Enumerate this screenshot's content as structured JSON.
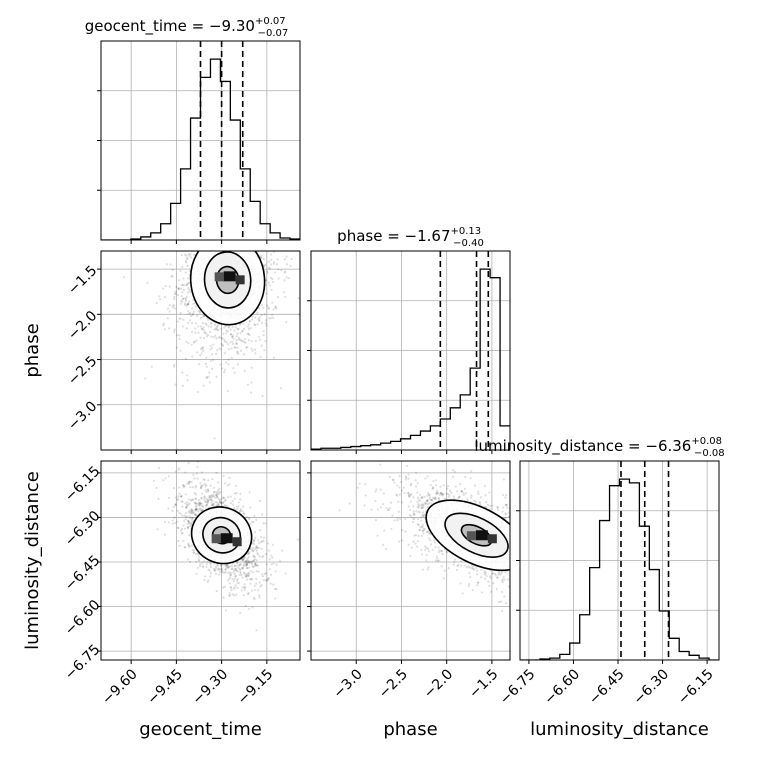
{
  "chart_data": {
    "type": "corner",
    "parameters": [
      "geocent_time",
      "phase",
      "luminosity_distance"
    ],
    "titles": [
      {
        "param": "geocent_time",
        "prefix": "geocent_time = ",
        "median": "−9.30",
        "plus": "+0.07",
        "minus": "−0.07"
      },
      {
        "param": "phase",
        "prefix": "phase = ",
        "median": "−1.67",
        "plus": "+0.13",
        "minus": "−0.40"
      },
      {
        "param": "luminosity_distance",
        "prefix": "luminosity_distance = ",
        "median": "−6.36",
        "plus": "+0.08",
        "minus": "−0.08"
      }
    ],
    "ranges": {
      "geocent_time": [
        -9.7,
        -9.04
      ],
      "phase": [
        -3.5,
        -1.3
      ],
      "luminosity_distance": [
        -6.78,
        -6.11
      ]
    },
    "ticks": {
      "geocent_time": [
        -9.6,
        -9.45,
        -9.3,
        -9.15
      ],
      "phase": [
        -3.0,
        -2.5,
        -2.0,
        -1.5
      ],
      "luminosity_distance": [
        -6.75,
        -6.6,
        -6.45,
        -6.3,
        -6.15
      ]
    },
    "tick_labels": {
      "geocent_time": [
        "−9.60",
        "−9.45",
        "−9.30",
        "−9.15"
      ],
      "phase": [
        "−3.0",
        "−2.5",
        "−2.0",
        "−1.5"
      ],
      "luminosity_distance": [
        "−6.75",
        "−6.60",
        "−6.45",
        "−6.30",
        "−6.15"
      ]
    },
    "quantiles": {
      "geocent_time": [
        -9.37,
        -9.3,
        -9.23
      ],
      "phase": [
        -2.07,
        -1.67,
        -1.54
      ],
      "luminosity_distance": [
        -6.44,
        -6.36,
        -6.28
      ]
    },
    "histograms": {
      "geocent_time": {
        "edges_start": -9.7,
        "bin_width": 0.033,
        "counts": [
          0,
          0,
          0,
          1,
          3,
          7,
          16,
          36,
          70,
          120,
          160,
          178,
          156,
          118,
          70,
          38,
          16,
          7,
          2,
          1
        ]
      },
      "phase": {
        "edges_start": -3.5,
        "bin_width": 0.11,
        "counts": [
          1,
          2,
          2,
          3,
          4,
          5,
          6,
          8,
          10,
          13,
          17,
          22,
          28,
          36,
          49,
          64,
          95,
          210,
          200,
          28
        ]
      },
      "luminosity_distance": {
        "edges_start": -6.78,
        "bin_width": 0.0335,
        "counts": [
          0,
          0,
          1,
          2,
          6,
          18,
          48,
          98,
          148,
          185,
          192,
          188,
          142,
          96,
          52,
          23,
          9,
          5,
          2,
          0
        ]
      }
    },
    "joint": [
      {
        "x": "geocent_time",
        "y": "phase",
        "x_center": -9.28,
        "y_center": -1.62,
        "x_sd": 0.085,
        "y_sd": 0.45,
        "corr": 0.1,
        "peak": [
          -9.27,
          -1.58
        ]
      },
      {
        "x": "geocent_time",
        "y": "luminosity_distance",
        "x_center": -9.3,
        "y_center": -6.36,
        "x_sd": 0.07,
        "y_sd": 0.085,
        "corr": -0.55,
        "peak": [
          -9.28,
          -6.37
        ]
      },
      {
        "x": "phase",
        "y": "luminosity_distance",
        "x_center": -1.67,
        "y_center": -6.36,
        "x_sd": 0.42,
        "y_sd": 0.085,
        "corr": -0.6,
        "peak": [
          -1.6,
          -6.36
        ]
      }
    ],
    "grid": true
  }
}
